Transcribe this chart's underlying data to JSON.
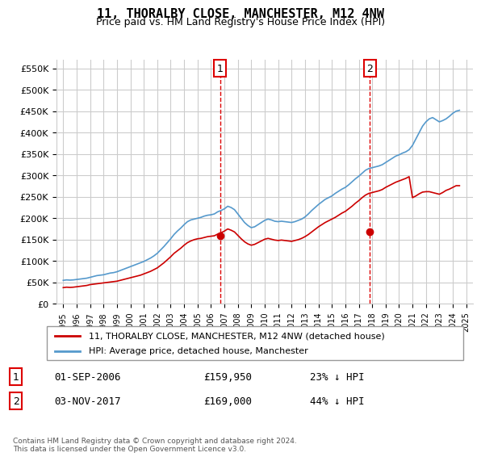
{
  "title": "11, THORALBY CLOSE, MANCHESTER, M12 4NW",
  "subtitle": "Price paid vs. HM Land Registry's House Price Index (HPI)",
  "ylabel_ticks": [
    "£0",
    "£50K",
    "£100K",
    "£150K",
    "£200K",
    "£250K",
    "£300K",
    "£350K",
    "£400K",
    "£450K",
    "£500K",
    "£550K"
  ],
  "ytick_values": [
    0,
    50000,
    100000,
    150000,
    200000,
    250000,
    300000,
    350000,
    400000,
    450000,
    500000,
    550000
  ],
  "xlim": [
    1994.5,
    2025.5
  ],
  "ylim": [
    0,
    570000
  ],
  "legend_line1": "11, THORALBY CLOSE, MANCHESTER, M12 4NW (detached house)",
  "legend_line2": "HPI: Average price, detached house, Manchester",
  "transaction1_label": "1",
  "transaction1_date": "01-SEP-2006",
  "transaction1_price": "£159,950",
  "transaction1_hpi": "23% ↓ HPI",
  "transaction1_year": 2006.67,
  "transaction1_price_val": 159950,
  "transaction2_label": "2",
  "transaction2_date": "03-NOV-2017",
  "transaction2_price": "£169,000",
  "transaction2_hpi": "44% ↓ HPI",
  "transaction2_year": 2017.84,
  "transaction2_price_val": 169000,
  "red_line_color": "#cc0000",
  "blue_line_color": "#5599cc",
  "vline_color": "#dd0000",
  "grid_color": "#cccccc",
  "background_color": "#ffffff",
  "copyright": "Contains HM Land Registry data © Crown copyright and database right 2024.\nThis data is licensed under the Open Government Licence v3.0.",
  "hpi_data_years": [
    1995,
    1995.25,
    1995.5,
    1995.75,
    1996,
    1996.25,
    1996.5,
    1996.75,
    1997,
    1997.25,
    1997.5,
    1997.75,
    1998,
    1998.25,
    1998.5,
    1998.75,
    1999,
    1999.25,
    1999.5,
    1999.75,
    2000,
    2000.25,
    2000.5,
    2000.75,
    2001,
    2001.25,
    2001.5,
    2001.75,
    2002,
    2002.25,
    2002.5,
    2002.75,
    2003,
    2003.25,
    2003.5,
    2003.75,
    2004,
    2004.25,
    2004.5,
    2004.75,
    2005,
    2005.25,
    2005.5,
    2005.75,
    2006,
    2006.25,
    2006.5,
    2006.75,
    2007,
    2007.25,
    2007.5,
    2007.75,
    2008,
    2008.25,
    2008.5,
    2008.75,
    2009,
    2009.25,
    2009.5,
    2009.75,
    2010,
    2010.25,
    2010.5,
    2010.75,
    2011,
    2011.25,
    2011.5,
    2011.75,
    2012,
    2012.25,
    2012.5,
    2012.75,
    2013,
    2013.25,
    2013.5,
    2013.75,
    2014,
    2014.25,
    2014.5,
    2014.75,
    2015,
    2015.25,
    2015.5,
    2015.75,
    2016,
    2016.25,
    2016.5,
    2016.75,
    2017,
    2017.25,
    2017.5,
    2017.75,
    2018,
    2018.25,
    2018.5,
    2018.75,
    2019,
    2019.25,
    2019.5,
    2019.75,
    2020,
    2020.25,
    2020.5,
    2020.75,
    2021,
    2021.25,
    2021.5,
    2021.75,
    2022,
    2022.25,
    2022.5,
    2022.75,
    2023,
    2023.25,
    2023.5,
    2023.75,
    2024,
    2024.25,
    2024.5
  ],
  "hpi_data_values": [
    55000,
    56000,
    55500,
    56000,
    57000,
    58000,
    59000,
    60000,
    62000,
    64000,
    66000,
    67000,
    68000,
    70000,
    72000,
    73000,
    75000,
    78000,
    81000,
    84000,
    87000,
    90000,
    93000,
    96000,
    99000,
    103000,
    107000,
    112000,
    118000,
    126000,
    134000,
    143000,
    152000,
    162000,
    170000,
    177000,
    185000,
    192000,
    196000,
    198000,
    200000,
    202000,
    205000,
    207000,
    208000,
    210000,
    215000,
    218000,
    222000,
    228000,
    225000,
    220000,
    210000,
    200000,
    190000,
    183000,
    178000,
    180000,
    185000,
    190000,
    195000,
    198000,
    196000,
    193000,
    192000,
    193000,
    192000,
    191000,
    190000,
    192000,
    195000,
    198000,
    203000,
    210000,
    218000,
    225000,
    232000,
    238000,
    244000,
    248000,
    252000,
    258000,
    263000,
    268000,
    272000,
    278000,
    285000,
    292000,
    298000,
    305000,
    312000,
    316000,
    318000,
    320000,
    322000,
    325000,
    330000,
    335000,
    340000,
    345000,
    348000,
    352000,
    355000,
    360000,
    370000,
    385000,
    400000,
    415000,
    425000,
    432000,
    435000,
    430000,
    425000,
    428000,
    432000,
    438000,
    445000,
    450000,
    452000
  ],
  "property_data_years": [
    1995,
    1995.25,
    1995.5,
    1995.75,
    1996,
    1996.25,
    1996.5,
    1996.75,
    1997,
    1997.25,
    1997.5,
    1997.75,
    1998,
    1998.25,
    1998.5,
    1998.75,
    1999,
    1999.25,
    1999.5,
    1999.75,
    2000,
    2000.25,
    2000.5,
    2000.75,
    2001,
    2001.25,
    2001.5,
    2001.75,
    2002,
    2002.25,
    2002.5,
    2002.75,
    2003,
    2003.25,
    2003.5,
    2003.75,
    2004,
    2004.25,
    2004.5,
    2004.75,
    2005,
    2005.25,
    2005.5,
    2005.75,
    2006,
    2006.25,
    2006.5,
    2006.75,
    2007,
    2007.25,
    2007.5,
    2007.75,
    2008,
    2008.25,
    2008.5,
    2008.75,
    2009,
    2009.25,
    2009.5,
    2009.75,
    2010,
    2010.25,
    2010.5,
    2010.75,
    2011,
    2011.25,
    2011.5,
    2011.75,
    2012,
    2012.25,
    2012.5,
    2012.75,
    2013,
    2013.25,
    2013.5,
    2013.75,
    2014,
    2014.25,
    2014.5,
    2014.75,
    2015,
    2015.25,
    2015.5,
    2015.75,
    2016,
    2016.25,
    2016.5,
    2016.75,
    2017,
    2017.25,
    2017.5,
    2017.75,
    2018,
    2018.25,
    2018.5,
    2018.75,
    2019,
    2019.25,
    2019.5,
    2019.75,
    2020,
    2020.25,
    2020.5,
    2020.75,
    2021,
    2021.25,
    2021.5,
    2021.75,
    2022,
    2022.25,
    2022.5,
    2022.75,
    2023,
    2023.25,
    2023.5,
    2023.75,
    2024,
    2024.25,
    2024.5
  ],
  "property_data_values": [
    38000,
    39000,
    38500,
    39000,
    40000,
    41000,
    42000,
    43000,
    45000,
    46000,
    47000,
    48000,
    49000,
    50000,
    51000,
    52000,
    53000,
    55000,
    57000,
    59000,
    61000,
    63000,
    65000,
    67000,
    70000,
    73000,
    76000,
    80000,
    84000,
    90000,
    96000,
    103000,
    110000,
    118000,
    124000,
    130000,
    137000,
    143000,
    147000,
    150000,
    152000,
    153000,
    155000,
    157000,
    158000,
    159000,
    163000,
    166000,
    170000,
    175000,
    172000,
    168000,
    160000,
    152000,
    145000,
    140000,
    137000,
    139000,
    143000,
    147000,
    151000,
    153000,
    151000,
    149000,
    148000,
    149000,
    148000,
    147000,
    146000,
    148000,
    150000,
    153000,
    157000,
    162000,
    168000,
    174000,
    180000,
    185000,
    190000,
    194000,
    198000,
    202000,
    207000,
    212000,
    216000,
    222000,
    228000,
    235000,
    241000,
    248000,
    254000,
    258000,
    260000,
    262000,
    264000,
    267000,
    272000,
    276000,
    280000,
    284000,
    287000,
    290000,
    293000,
    297000,
    248000,
    252000,
    257000,
    261000,
    262000,
    262000,
    260000,
    258000,
    256000,
    260000,
    265000,
    268000,
    272000,
    276000,
    276000
  ]
}
